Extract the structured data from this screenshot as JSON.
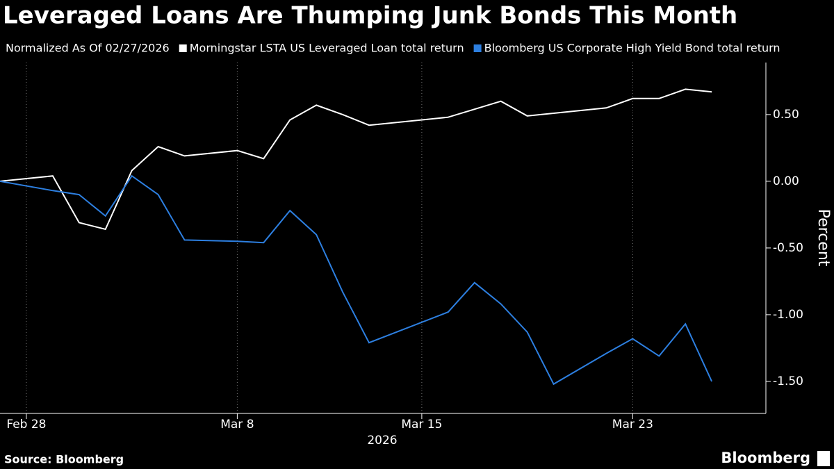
{
  "chart_data": {
    "type": "line",
    "title": "Leveraged Loans Are Thumping Junk Bonds This Month",
    "subtitle": "Normalized As Of 02/27/2026",
    "y_label": "Percent",
    "x_label": "2026",
    "source": "Source: Bloomberg",
    "brand": "Bloomberg",
    "x": [
      "2026-02-27",
      "2026-03-01",
      "2026-03-02",
      "2026-03-03",
      "2026-03-04",
      "2026-03-05",
      "2026-03-06",
      "2026-03-08",
      "2026-03-09",
      "2026-03-10",
      "2026-03-11",
      "2026-03-12",
      "2026-03-13",
      "2026-03-16",
      "2026-03-17",
      "2026-03-18",
      "2026-03-19",
      "2026-03-20",
      "2026-03-22",
      "2026-03-23",
      "2026-03-24",
      "2026-03-25",
      "2026-03-26"
    ],
    "series": [
      {
        "name": "Morningstar LSTA US Leveraged Loan total return",
        "color": "#ffffff",
        "values": [
          0,
          0.04,
          -0.31,
          -0.36,
          0.08,
          0.26,
          0.19,
          0.23,
          0.17,
          0.46,
          0.57,
          0.5,
          0.42,
          0.48,
          0.54,
          0.6,
          0.49,
          0.51,
          0.55,
          0.62,
          0.62,
          0.69,
          0.67
        ]
      },
      {
        "name": "Bloomberg US Corporate High Yield Bond total return",
        "color": "#2d7fe0",
        "values": [
          0,
          -0.07,
          -0.1,
          -0.26,
          0.04,
          -0.1,
          -0.44,
          -0.45,
          -0.46,
          -0.22,
          -0.4,
          -0.83,
          -1.21,
          -0.98,
          -0.76,
          -0.92,
          -1.13,
          -1.52,
          -1.29,
          -1.18,
          -1.31,
          -1.07,
          -1.5
        ]
      }
    ],
    "xlim": [
      "2026-02-27",
      "2026-03-28"
    ],
    "xticks": [
      {
        "value": "2026-02-28",
        "label": "Feb 28"
      },
      {
        "value": "2026-03-08",
        "label": "Mar 8"
      },
      {
        "value": "2026-03-15",
        "label": "Mar 15"
      },
      {
        "value": "2026-03-23",
        "label": "Mar 23"
      }
    ],
    "ylim": [
      -1.74,
      0.89
    ],
    "yticks": [
      {
        "value": 0.5,
        "label": "0.50"
      },
      {
        "value": 0,
        "label": "0.00"
      },
      {
        "value": -0.5,
        "label": "-0.50"
      },
      {
        "value": -1,
        "label": "-1.00"
      },
      {
        "value": -1.5,
        "label": "-1.50"
      }
    ],
    "grid": "x"
  }
}
